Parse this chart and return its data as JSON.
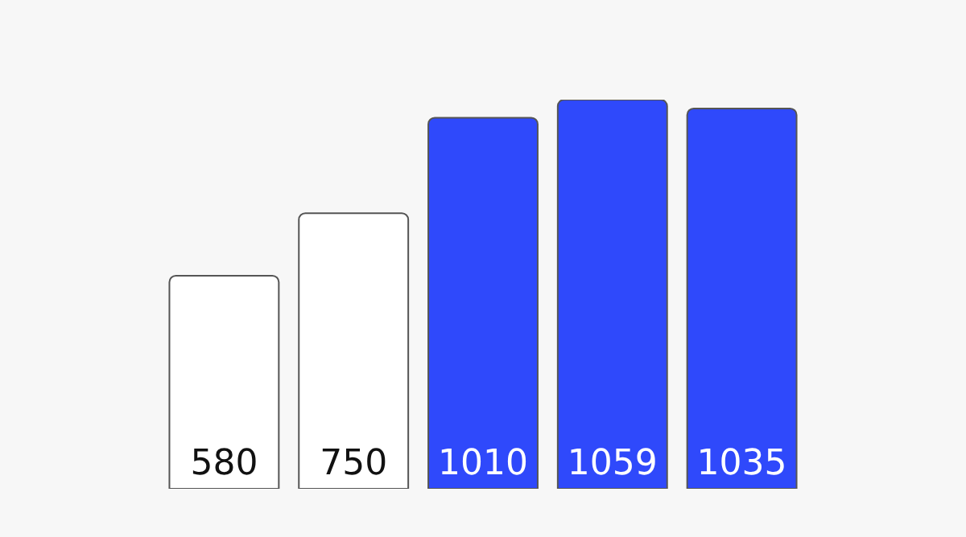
{
  "chart_data": {
    "type": "bar",
    "categories": [
      null,
      null,
      null,
      null,
      null
    ],
    "values": [
      580,
      750,
      1010,
      1059,
      1035
    ],
    "colors": [
      "#ffffff",
      "#ffffff",
      "#2f49fb",
      "#2f49fb",
      "#2f49fb"
    ],
    "data_labels": true
  }
}
